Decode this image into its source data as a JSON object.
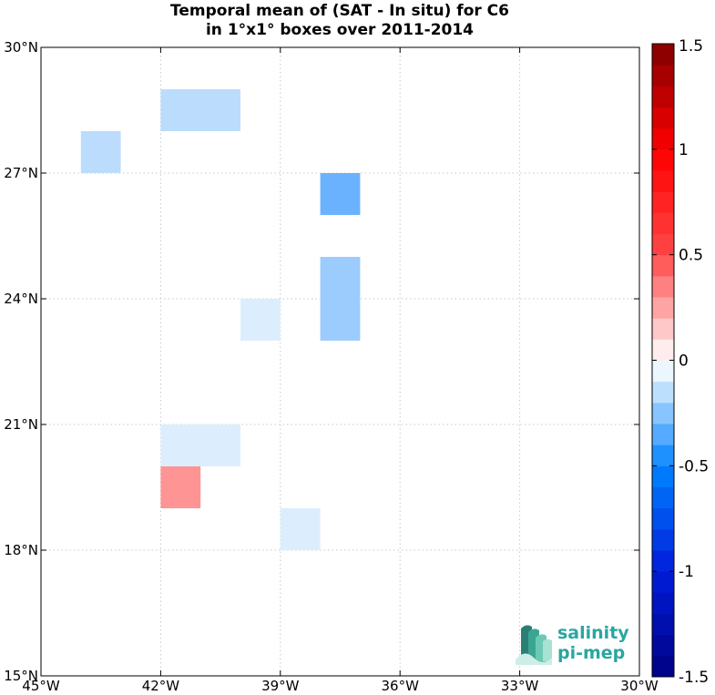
{
  "chart_data": {
    "type": "heatmap",
    "title_line1": "Temporal mean of (SAT - In situ) for C6",
    "title_line2": "in 1°x1° boxes over 2011-2014",
    "xlim": [
      -45,
      -30
    ],
    "ylim": [
      15,
      30
    ],
    "x_ticks": [
      {
        "value": -45,
        "label": "45°W"
      },
      {
        "value": -42,
        "label": "42°W"
      },
      {
        "value": -39,
        "label": "39°W"
      },
      {
        "value": -36,
        "label": "36°W"
      },
      {
        "value": -33,
        "label": "33°W"
      },
      {
        "value": -30,
        "label": "30°W"
      }
    ],
    "y_ticks": [
      {
        "value": 15,
        "label": "15°N"
      },
      {
        "value": 18,
        "label": "18°N"
      },
      {
        "value": 21,
        "label": "21°N"
      },
      {
        "value": 24,
        "label": "24°N"
      },
      {
        "value": 27,
        "label": "27°N"
      },
      {
        "value": 30,
        "label": "30°N"
      }
    ],
    "grid": true,
    "colorbar": {
      "range": [
        -1.5,
        1.5
      ],
      "ticks": [
        {
          "value": 1.5,
          "label": "1.5"
        },
        {
          "value": 1,
          "label": "1"
        },
        {
          "value": 0.5,
          "label": "0.5"
        },
        {
          "value": 0,
          "label": "0"
        },
        {
          "value": -0.5,
          "label": "-0.5"
        },
        {
          "value": -1,
          "label": "-1"
        },
        {
          "value": -1.5,
          "label": "-1.5"
        }
      ]
    },
    "cells": [
      {
        "lon_min": -42,
        "lon_max": -40,
        "lat_min": 28,
        "lat_max": 29,
        "value": -0.3,
        "color": "#bcdcfe"
      },
      {
        "lon_min": -44,
        "lon_max": -43,
        "lat_min": 27,
        "lat_max": 28,
        "value": -0.3,
        "color": "#bcdcfe"
      },
      {
        "lon_min": -38,
        "lon_max": -37,
        "lat_min": 26,
        "lat_max": 27,
        "value": -0.55,
        "color": "#6bb2fe"
      },
      {
        "lon_min": -38,
        "lon_max": -37,
        "lat_min": 23,
        "lat_max": 25,
        "value": -0.4,
        "color": "#9cccfe"
      },
      {
        "lon_min": -40,
        "lon_max": -39,
        "lat_min": 23,
        "lat_max": 24,
        "value": -0.2,
        "color": "#dceefe"
      },
      {
        "lon_min": -42,
        "lon_max": -40,
        "lat_min": 20,
        "lat_max": 21,
        "value": -0.2,
        "color": "#dceefe"
      },
      {
        "lon_min": -42,
        "lon_max": -41,
        "lat_min": 19,
        "lat_max": 20,
        "value": 0.4,
        "color": "#fe9494"
      },
      {
        "lon_min": -39,
        "lon_max": -38,
        "lat_min": 18,
        "lat_max": 19,
        "value": -0.2,
        "color": "#dceefe"
      }
    ]
  },
  "logo": {
    "line1": "salinity",
    "line2": "pi-mep",
    "color": "#2aa6a0"
  }
}
